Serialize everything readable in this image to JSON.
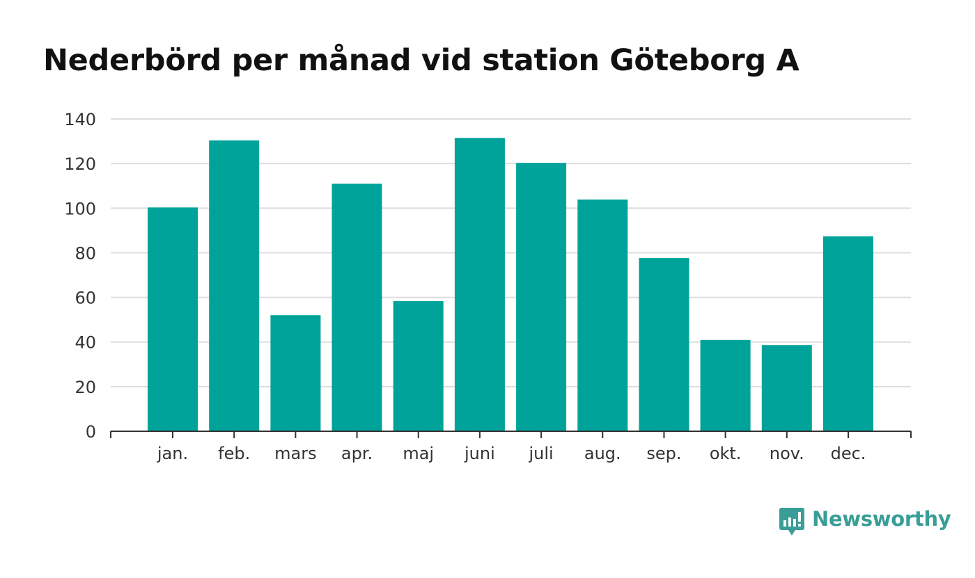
{
  "colors": {
    "bar": "#00a399",
    "grid": "#dddddd",
    "axis": "#333333",
    "title": "#111111",
    "brand": "#3a9e97"
  },
  "brand": {
    "name": "Newsworthy",
    "icon": "newsworthy-logo-icon"
  },
  "chart_data": {
    "type": "bar",
    "title": "Nederbörd per månad vid station Göteborg A",
    "xlabel": "",
    "ylabel": "",
    "categories": [
      "jan.",
      "feb.",
      "mars",
      "apr.",
      "maj",
      "juni",
      "juli",
      "aug.",
      "sep.",
      "okt.",
      "nov.",
      "dec."
    ],
    "values": [
      100.3,
      130.4,
      52.0,
      111.0,
      58.3,
      131.5,
      120.3,
      103.9,
      77.6,
      40.9,
      38.6,
      87.4
    ],
    "ylim": [
      0,
      140
    ],
    "yticks": [
      0,
      20,
      40,
      60,
      80,
      100,
      120,
      140
    ],
    "grid": true,
    "legend": "none"
  }
}
